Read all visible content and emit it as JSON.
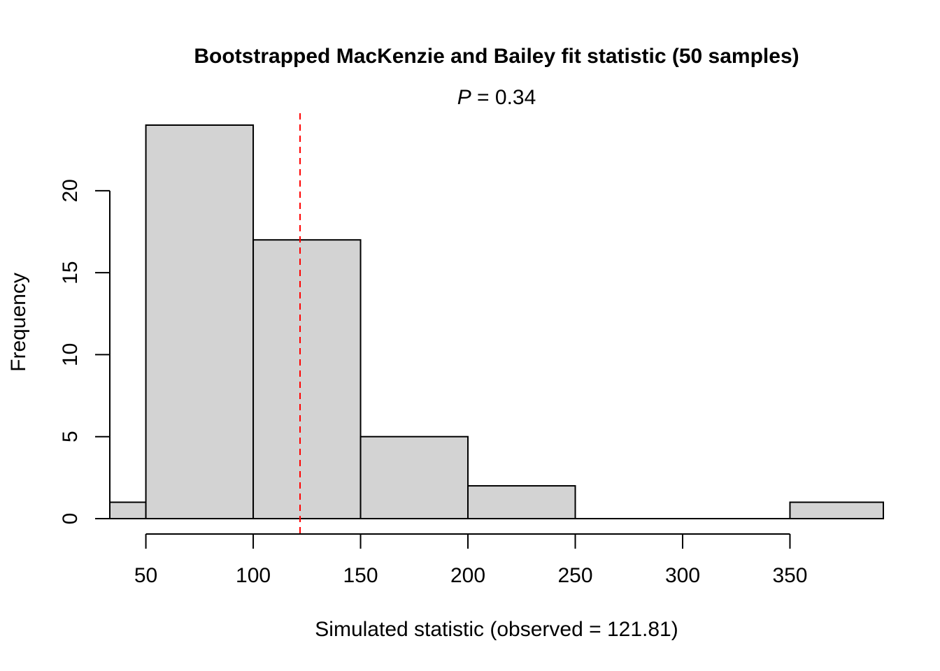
{
  "chart_data": {
    "type": "bar",
    "title": "Bootstrapped MacKenzie and Bailey fit statistic (50 samples)",
    "subtitle": {
      "italic_part": "P",
      "rest": " = 0.34"
    },
    "xlabel": "Simulated statistic (observed = 121.81)",
    "ylabel": "Frequency",
    "bins": [
      {
        "from": 33.2,
        "to": 50,
        "count": 1
      },
      {
        "from": 50,
        "to": 100,
        "count": 24
      },
      {
        "from": 100,
        "to": 150,
        "count": 17
      },
      {
        "from": 150,
        "to": 200,
        "count": 5
      },
      {
        "from": 200,
        "to": 250,
        "count": 2
      },
      {
        "from": 250,
        "to": 300,
        "count": 0
      },
      {
        "from": 300,
        "to": 350,
        "count": 0
      },
      {
        "from": 350,
        "to": 393.5,
        "count": 1
      }
    ],
    "observed": 121.81,
    "observed_line_color": "#ff0000",
    "bar_color": "#d3d3d3",
    "xlim": [
      33.2,
      393.5
    ],
    "ylim": [
      0,
      24
    ],
    "x_ticks": [
      50,
      100,
      150,
      200,
      250,
      300,
      350
    ],
    "y_ticks": [
      0,
      5,
      10,
      15,
      20
    ],
    "grid": false
  }
}
